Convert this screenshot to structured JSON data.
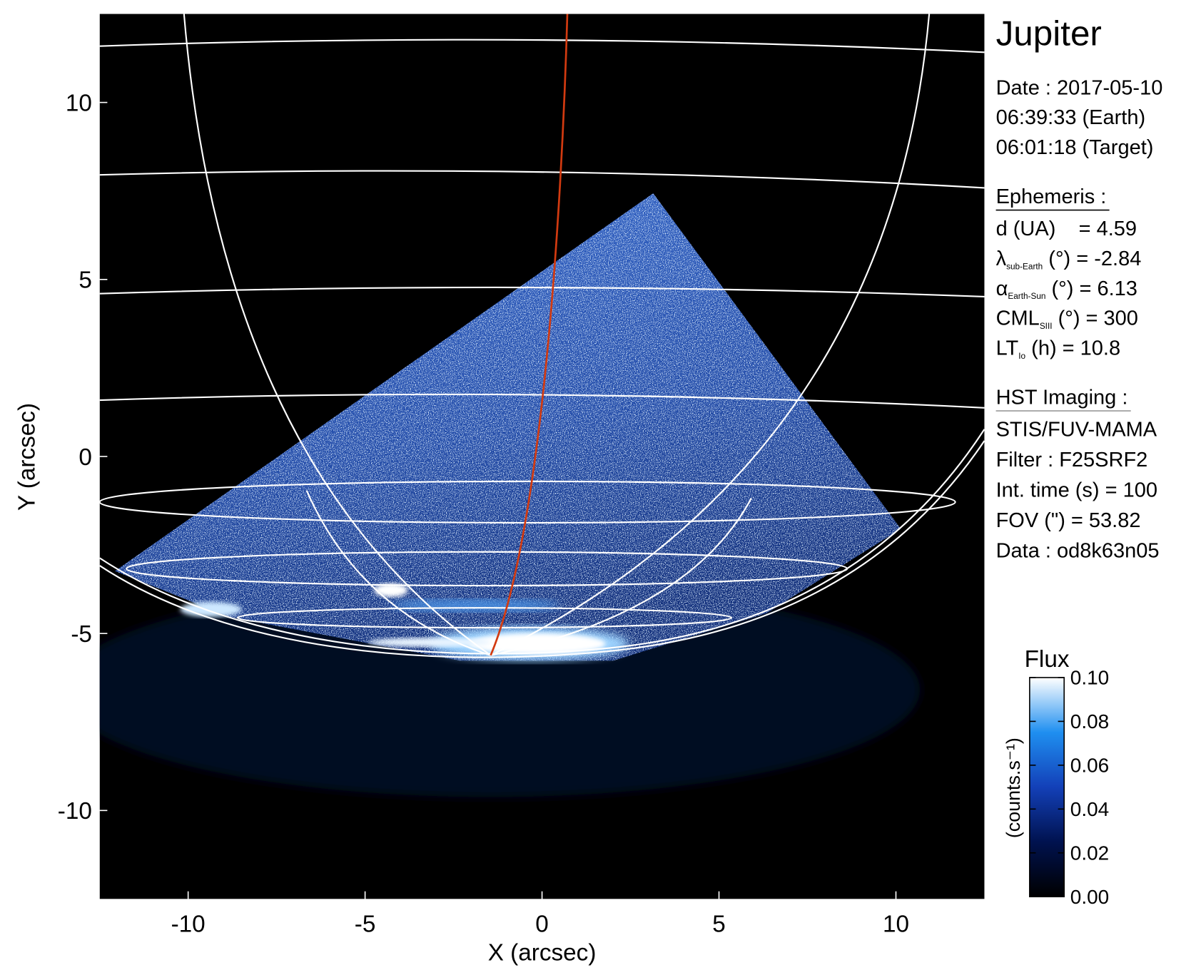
{
  "chart_data": {
    "type": "image",
    "xlabel": "X (arcsec)",
    "ylabel": "Y (arcsec)",
    "xlim": [
      -12.5,
      12.5
    ],
    "ylim": [
      -12.5,
      12.5
    ],
    "xticks": [
      -10,
      -5,
      0,
      5,
      10
    ],
    "yticks": [
      -10,
      -5,
      0,
      5,
      10
    ],
    "colorbar": {
      "title": "Flux",
      "label": "(counts.s⁻¹)",
      "clim": [
        0,
        0.1
      ],
      "colormap": [
        "#000000",
        "#00124f",
        "#1340b8",
        "#1f8ff0",
        "#ffffff"
      ],
      "ticks": [
        {
          "value": 0,
          "label": "0.00"
        },
        {
          "value": 0.02,
          "label": "0.02"
        },
        {
          "value": 0.04,
          "label": "0.04"
        },
        {
          "value": 0.06,
          "label": "0.06"
        },
        {
          "value": 0.08,
          "label": "0.08"
        },
        {
          "value": 0.1,
          "label": "0.10"
        }
      ]
    },
    "info": {
      "title": "Jupiter",
      "date": [
        "Date : 2017-05-10",
        "06:39:33 (Earth)",
        "06:01:18 (Target)"
      ],
      "ephemeris": {
        "heading": "Ephemeris :",
        "lines": [
          {
            "text": "d (UA)    = 4.59"
          },
          {
            "symbol": "λ",
            "sub": "sub-Earth",
            "text": " (°) = -2.84"
          },
          {
            "symbol": "α",
            "sub": "Earth-Sun",
            "text": " (°) = 6.13"
          },
          {
            "symbol": "CML",
            "sub": "SIII",
            "text": " (°) = 300"
          },
          {
            "symbol": "LT",
            "sub": "Io",
            "text": " (h) = 10.8"
          }
        ]
      },
      "hst": {
        "heading": "HST Imaging :",
        "lines": [
          "STIS/FUV-MAMA",
          "Filter : F25SRF2",
          "Int. time (s) = 100",
          "FOV (\") = 53.82",
          "Data : od8k63n05"
        ]
      }
    }
  }
}
